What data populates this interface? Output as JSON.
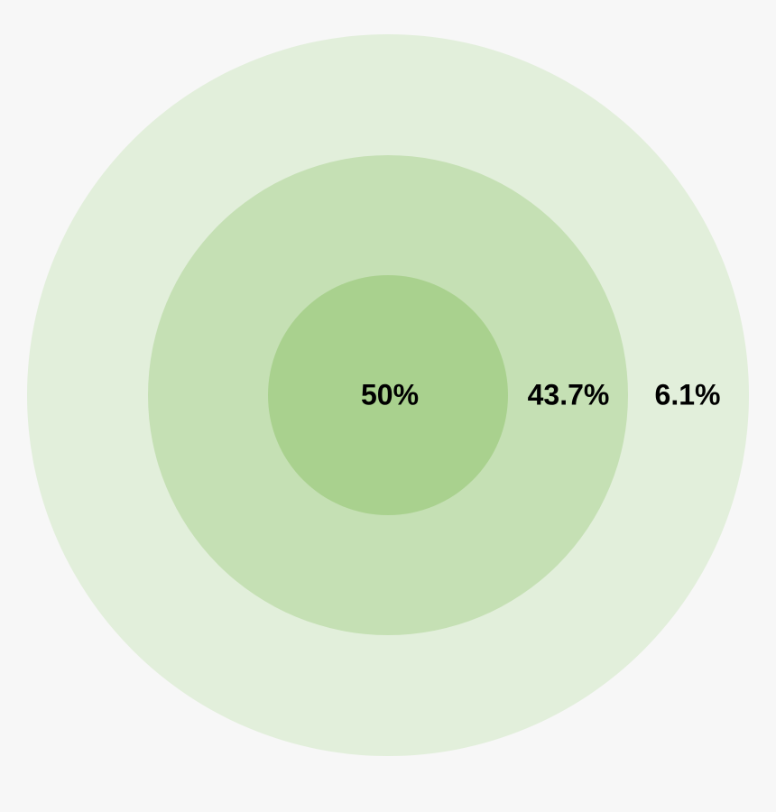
{
  "rings": [
    {
      "label": "50%"
    },
    {
      "label": "43.7%"
    },
    {
      "label": "6.1%"
    }
  ]
}
